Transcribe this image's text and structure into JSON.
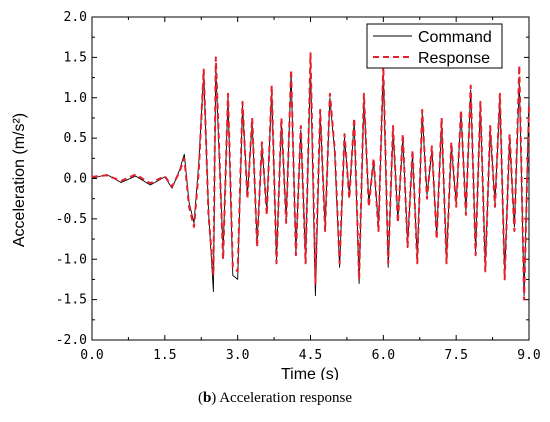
{
  "chart_data": {
    "type": "line",
    "xlabel": "Time (s)",
    "ylabel": "Acceleration (m/s²)",
    "xlim": [
      0,
      9
    ],
    "ylim": [
      -2,
      2
    ],
    "xticks": [
      "0.0",
      "1.5",
      "3.0",
      "4.5",
      "6.0",
      "7.5",
      "9.0"
    ],
    "xtick_values": [
      0,
      1.5,
      3,
      4.5,
      6,
      7.5,
      9
    ],
    "yticks": [
      "-2.0",
      "-1.5",
      "-1.0",
      "-0.5",
      "0.0",
      "0.5",
      "1.0",
      "1.5",
      "2.0"
    ],
    "ytick_values": [
      -2,
      -1.5,
      -1,
      -0.5,
      0,
      0.5,
      1,
      1.5,
      2
    ],
    "legend_position": "top-right",
    "grid": false,
    "series": [
      {
        "name": "Command",
        "color": "#000000",
        "style": "solid",
        "x": [
          0,
          0.3,
          0.6,
          0.9,
          1.2,
          1.5,
          1.65,
          1.8,
          1.9,
          2.0,
          2.1,
          2.2,
          2.3,
          2.4,
          2.5,
          2.55,
          2.6,
          2.7,
          2.8,
          2.9,
          3.0,
          3.1,
          3.2,
          3.3,
          3.4,
          3.5,
          3.6,
          3.7,
          3.8,
          3.9,
          4.0,
          4.1,
          4.2,
          4.3,
          4.4,
          4.5,
          4.6,
          4.7,
          4.8,
          4.9,
          5.0,
          5.1,
          5.2,
          5.3,
          5.4,
          5.5,
          5.6,
          5.7,
          5.8,
          5.9,
          6.0,
          6.1,
          6.2,
          6.3,
          6.4,
          6.5,
          6.6,
          6.7,
          6.8,
          6.9,
          7.0,
          7.1,
          7.2,
          7.3,
          7.4,
          7.5,
          7.6,
          7.7,
          7.8,
          7.9,
          8.0,
          8.1,
          8.2,
          8.3,
          8.4,
          8.5,
          8.6,
          8.7,
          8.8,
          8.9,
          9.0
        ],
        "y": [
          0.0,
          0.05,
          -0.05,
          0.03,
          -0.08,
          0.02,
          -0.12,
          0.1,
          0.3,
          -0.3,
          -0.55,
          0.2,
          1.3,
          -0.4,
          -1.4,
          1.4,
          0.6,
          -0.9,
          1.0,
          -1.2,
          -1.25,
          0.9,
          -0.2,
          0.7,
          -0.8,
          0.4,
          -0.4,
          1.1,
          -1.0,
          0.7,
          -0.5,
          1.3,
          -0.9,
          0.6,
          -1.0,
          1.4,
          -1.45,
          0.8,
          -0.6,
          1.0,
          0.3,
          -1.1,
          0.5,
          -0.2,
          0.7,
          -1.3,
          1.0,
          -0.3,
          0.2,
          -0.6,
          1.35,
          -1.1,
          0.6,
          -0.5,
          0.5,
          -0.8,
          0.3,
          -1.0,
          0.8,
          -0.2,
          0.35,
          -0.7,
          0.7,
          -1.0,
          0.4,
          -0.3,
          0.8,
          -0.4,
          1.1,
          -0.9,
          0.9,
          -1.1,
          0.6,
          -0.3,
          1.0,
          -1.2,
          0.5,
          -0.6,
          1.2,
          -1.45,
          1.0
        ]
      },
      {
        "name": "Response",
        "color": "#e3202c",
        "style": "dashed",
        "x": [
          0,
          0.3,
          0.6,
          0.9,
          1.2,
          1.5,
          1.65,
          1.8,
          1.9,
          2.0,
          2.1,
          2.2,
          2.3,
          2.4,
          2.5,
          2.55,
          2.6,
          2.7,
          2.8,
          2.9,
          3.0,
          3.1,
          3.2,
          3.3,
          3.4,
          3.5,
          3.6,
          3.7,
          3.8,
          3.9,
          4.0,
          4.1,
          4.2,
          4.3,
          4.4,
          4.5,
          4.6,
          4.7,
          4.8,
          4.9,
          5.0,
          5.1,
          5.2,
          5.3,
          5.4,
          5.5,
          5.6,
          5.7,
          5.8,
          5.9,
          6.0,
          6.1,
          6.2,
          6.3,
          6.4,
          6.5,
          6.6,
          6.7,
          6.8,
          6.9,
          7.0,
          7.1,
          7.2,
          7.3,
          7.4,
          7.5,
          7.6,
          7.7,
          7.8,
          7.9,
          8.0,
          8.1,
          8.2,
          8.3,
          8.4,
          8.5,
          8.6,
          8.7,
          8.8,
          8.9,
          9.0
        ],
        "y": [
          0.02,
          0.04,
          -0.03,
          0.05,
          -0.06,
          0.03,
          -0.1,
          0.08,
          0.25,
          -0.35,
          -0.6,
          0.1,
          1.35,
          -0.45,
          -1.2,
          1.5,
          0.7,
          -1.0,
          1.05,
          -1.1,
          -1.15,
          0.95,
          -0.25,
          0.75,
          -0.85,
          0.45,
          -0.45,
          1.15,
          -1.05,
          0.75,
          -0.55,
          1.35,
          -0.95,
          0.65,
          -1.05,
          1.55,
          -1.3,
          0.85,
          -0.65,
          1.05,
          0.35,
          -1.05,
          0.55,
          -0.25,
          0.75,
          -1.25,
          1.05,
          -0.35,
          0.25,
          -0.65,
          1.4,
          -1.05,
          0.65,
          -0.55,
          0.55,
          -0.85,
          0.35,
          -1.05,
          0.85,
          -0.25,
          0.4,
          -0.75,
          0.75,
          -1.05,
          0.45,
          -0.35,
          0.85,
          -0.45,
          1.15,
          -0.95,
          0.95,
          -1.15,
          0.65,
          -0.35,
          1.05,
          -1.25,
          0.55,
          -0.65,
          1.4,
          -1.5,
          0.9
        ]
      }
    ]
  },
  "caption": {
    "label": "b",
    "text": "Acceleration response"
  }
}
